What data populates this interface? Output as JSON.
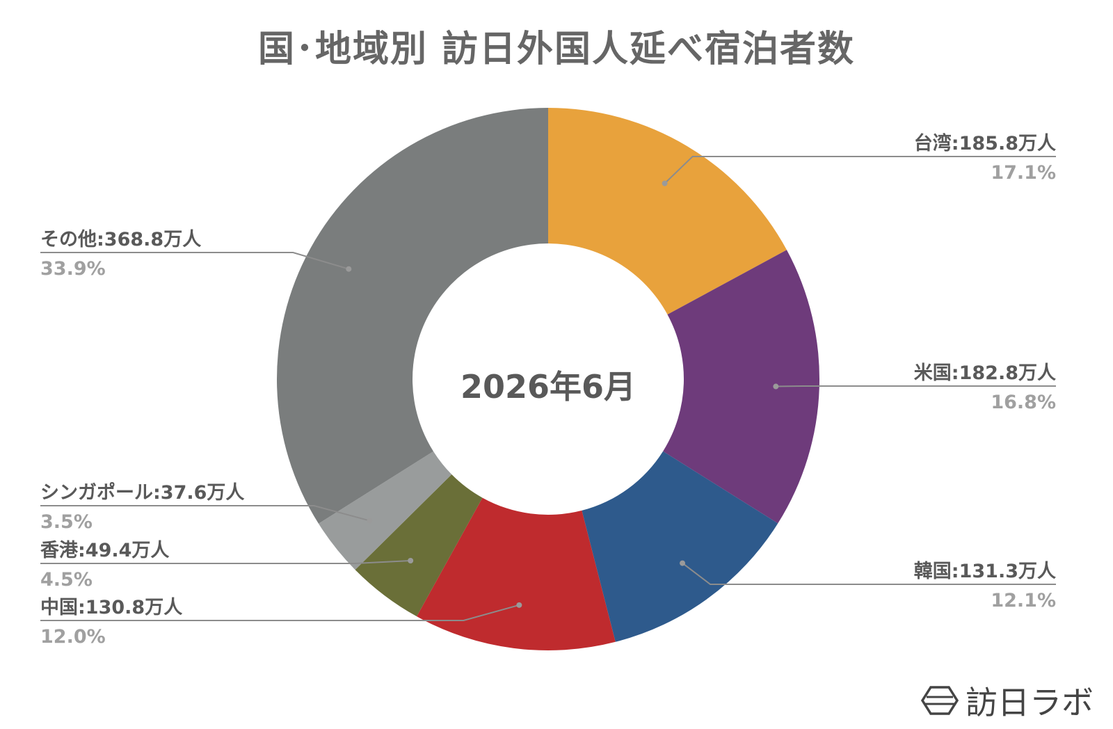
{
  "chart_data": {
    "type": "pie",
    "title": "国･地域別 訪日外国人延べ宿泊者数",
    "center_label": "2026年6月",
    "slices": [
      {
        "label": "台湾:185.8万人",
        "value": 185.8,
        "percent": "17.1%",
        "color": "#E8A23C",
        "side": "right"
      },
      {
        "label": "米国:182.8万人",
        "value": 182.8,
        "percent": "16.8%",
        "color": "#6E3B7B",
        "side": "right"
      },
      {
        "label": "韓国:131.3万人",
        "value": 131.3,
        "percent": "12.1%",
        "color": "#2E5A8C",
        "side": "right"
      },
      {
        "label": "中国:130.8万人",
        "value": 130.8,
        "percent": "12.0%",
        "color": "#BF2B2E",
        "side": "left"
      },
      {
        "label": "香港:49.4万人",
        "value": 49.4,
        "percent": "4.5%",
        "color": "#6A6F38",
        "side": "left"
      },
      {
        "label": "シンガポール:37.6万人",
        "value": 37.6,
        "percent": "3.5%",
        "color": "#999C9C",
        "side": "left"
      },
      {
        "label": "その他:368.8万人",
        "value": 368.8,
        "percent": "33.9%",
        "color": "#7A7D7D",
        "side": "left"
      }
    ],
    "legend": "none"
  },
  "logo": {
    "text": "訪日ラボ"
  }
}
